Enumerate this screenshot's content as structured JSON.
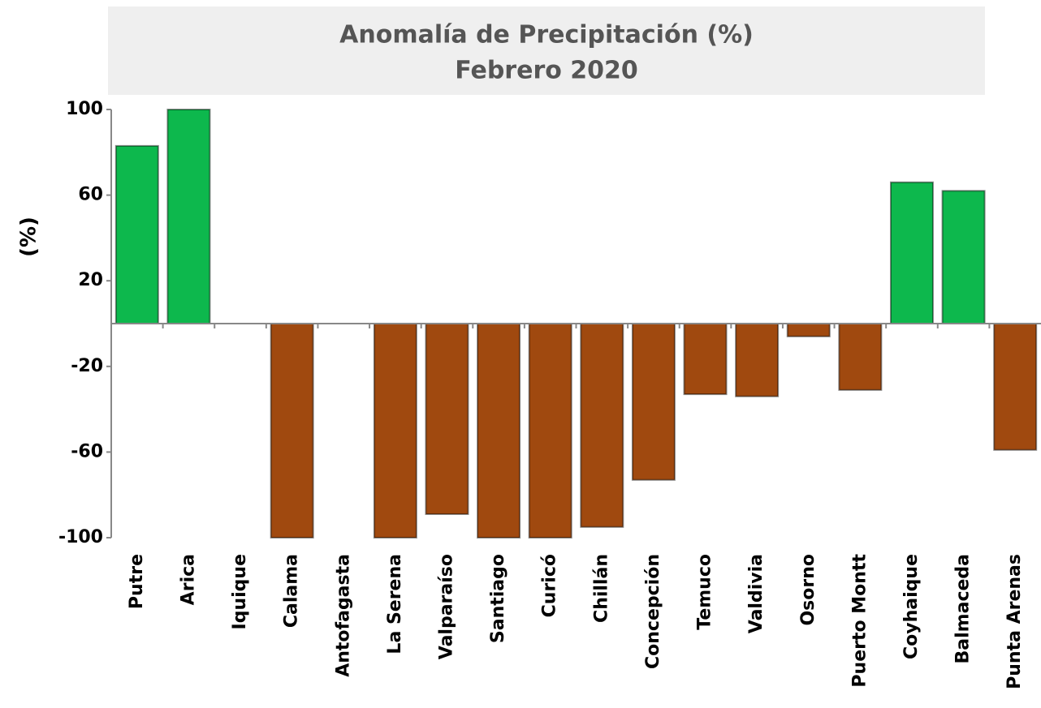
{
  "chart_data": {
    "type": "bar",
    "title": "Anomalía de Precipitación (%)",
    "subtitle": "Febrero 2020",
    "y_label": "(%)",
    "categories": [
      "Putre",
      "Arica",
      "Iquique",
      "Calama",
      "Antofagasta",
      "La Serena",
      "Valparaíso",
      "Santiago",
      "Curicó",
      "Chillán",
      "Concepción",
      "Temuco",
      "Valdivia",
      "Osorno",
      "Puerto Montt",
      "Coyhaique",
      "Balmaceda",
      "Punta Arenas"
    ],
    "values": [
      83,
      100,
      null,
      -100,
      null,
      -100,
      -89,
      -100,
      -100,
      -95,
      -73,
      -33,
      -34,
      -6,
      -31,
      66,
      62,
      -59
    ],
    "positive_color": "#0db84d",
    "negative_color": "#a0490f",
    "ylim": [
      -100,
      100
    ],
    "yticks": [
      -100,
      -60,
      -20,
      20,
      60,
      100
    ],
    "grid": false
  }
}
